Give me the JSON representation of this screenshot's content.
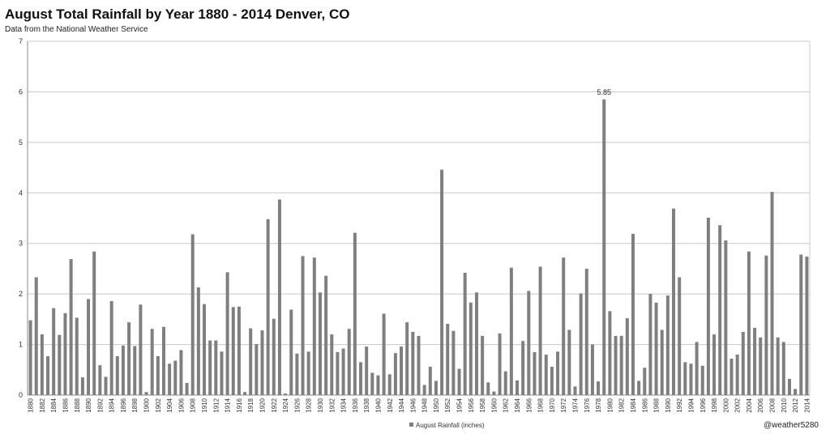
{
  "chart_data": {
    "type": "bar",
    "title": "August Total Rainfall by Year 1880 - 2014 Denver, CO",
    "subtitle": "Data from the National Weather Service",
    "xlabel": "",
    "ylabel": "",
    "ylim": [
      0,
      7
    ],
    "yticks": [
      "0",
      "1",
      "2",
      "3",
      "4",
      "5",
      "6",
      "7"
    ],
    "grid": true,
    "legend_position": "bottom",
    "color": "#7f7f7f",
    "series": [
      {
        "name": "August Rainfall (inches)",
        "x": [
          1880,
          1881,
          1882,
          1883,
          1884,
          1885,
          1886,
          1887,
          1888,
          1889,
          1890,
          1891,
          1892,
          1893,
          1894,
          1895,
          1896,
          1897,
          1898,
          1899,
          1900,
          1901,
          1902,
          1903,
          1904,
          1905,
          1906,
          1907,
          1908,
          1909,
          1910,
          1911,
          1912,
          1913,
          1914,
          1915,
          1916,
          1917,
          1918,
          1919,
          1920,
          1921,
          1922,
          1923,
          1924,
          1925,
          1926,
          1927,
          1928,
          1929,
          1930,
          1931,
          1932,
          1933,
          1934,
          1935,
          1936,
          1937,
          1938,
          1939,
          1940,
          1941,
          1942,
          1943,
          1944,
          1945,
          1946,
          1947,
          1948,
          1949,
          1950,
          1951,
          1952,
          1953,
          1954,
          1955,
          1956,
          1957,
          1958,
          1959,
          1960,
          1961,
          1962,
          1963,
          1964,
          1965,
          1966,
          1967,
          1968,
          1969,
          1970,
          1971,
          1972,
          1973,
          1974,
          1975,
          1976,
          1977,
          1978,
          1979,
          1980,
          1981,
          1982,
          1983,
          1984,
          1985,
          1986,
          1987,
          1988,
          1989,
          1990,
          1991,
          1992,
          1993,
          1994,
          1995,
          1996,
          1997,
          1998,
          1999,
          2000,
          2001,
          2002,
          2003,
          2004,
          2005,
          2006,
          2007,
          2008,
          2009,
          2010,
          2011,
          2012,
          2013,
          2014
        ],
        "values": [
          1.48,
          2.33,
          1.2,
          0.77,
          1.72,
          1.19,
          1.62,
          2.69,
          1.53,
          0.35,
          1.9,
          2.84,
          0.59,
          0.36,
          1.86,
          0.77,
          0.98,
          1.44,
          0.97,
          1.79,
          0.06,
          1.31,
          0.77,
          1.35,
          0.62,
          0.68,
          0.89,
          0.24,
          3.18,
          2.13,
          1.8,
          1.08,
          1.08,
          0.86,
          2.43,
          1.74,
          1.75,
          0.06,
          1.32,
          1.01,
          1.28,
          3.48,
          1.51,
          3.87,
          0.03,
          1.69,
          0.82,
          2.75,
          0.86,
          2.72,
          2.03,
          2.36,
          1.2,
          0.85,
          0.92,
          1.31,
          3.21,
          0.65,
          0.96,
          0.44,
          0.39,
          1.61,
          0.41,
          0.83,
          0.96,
          1.44,
          1.25,
          1.17,
          0.2,
          0.56,
          0.28,
          4.46,
          1.41,
          1.27,
          0.52,
          2.42,
          1.83,
          2.03,
          1.17,
          0.25,
          0.07,
          1.22,
          0.47,
          2.52,
          0.29,
          1.07,
          2.06,
          0.85,
          2.54,
          0.8,
          0.56,
          0.86,
          2.72,
          1.29,
          0.17,
          2.01,
          2.5,
          1.0,
          0.27,
          5.85,
          1.66,
          1.17,
          1.17,
          1.52,
          3.19,
          0.28,
          0.54,
          2.0,
          1.83,
          1.29,
          1.97,
          3.69,
          2.33,
          0.65,
          0.62,
          1.05,
          0.58,
          3.51,
          1.2,
          3.36,
          3.06,
          0.72,
          0.8,
          1.25,
          2.84,
          1.33,
          1.14,
          2.76,
          4.02,
          1.14,
          1.05,
          0.32,
          0.12,
          2.78,
          2.74
        ]
      }
    ],
    "annotations": [
      {
        "x": 1979,
        "text": "5.85"
      }
    ]
  },
  "watermark": "@weather5280"
}
